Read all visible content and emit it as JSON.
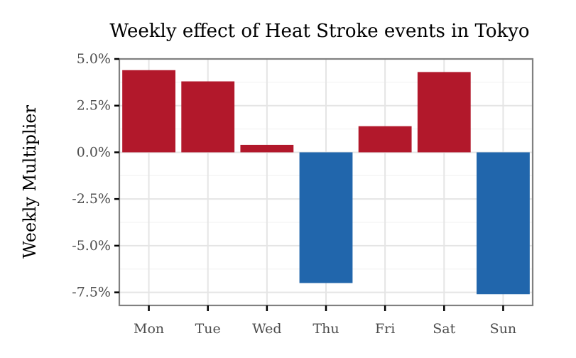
{
  "chart_data": {
    "type": "bar",
    "title": "Weekly effect of Heat Stroke events in Tokyo",
    "xlabel": "",
    "ylabel": "Weekly Multiplier",
    "categories": [
      "Mon",
      "Tue",
      "Wed",
      "Thu",
      "Fri",
      "Sat",
      "Sun"
    ],
    "values": [
      4.4,
      3.8,
      0.4,
      -7.0,
      1.4,
      4.3,
      -7.6
    ],
    "value_unit": "%",
    "ylim": [
      -8.2,
      5.0
    ],
    "yticks": [
      5.0,
      2.5,
      0.0,
      -2.5,
      -5.0,
      -7.5
    ],
    "ytick_labels": [
      "5.0%",
      "2.5%",
      "0.0%",
      "-2.5%",
      "-5.0%",
      "-7.5%"
    ],
    "grid": true,
    "legend": "none",
    "colors": {
      "positive": "#b2182b",
      "negative": "#2166ac"
    }
  }
}
